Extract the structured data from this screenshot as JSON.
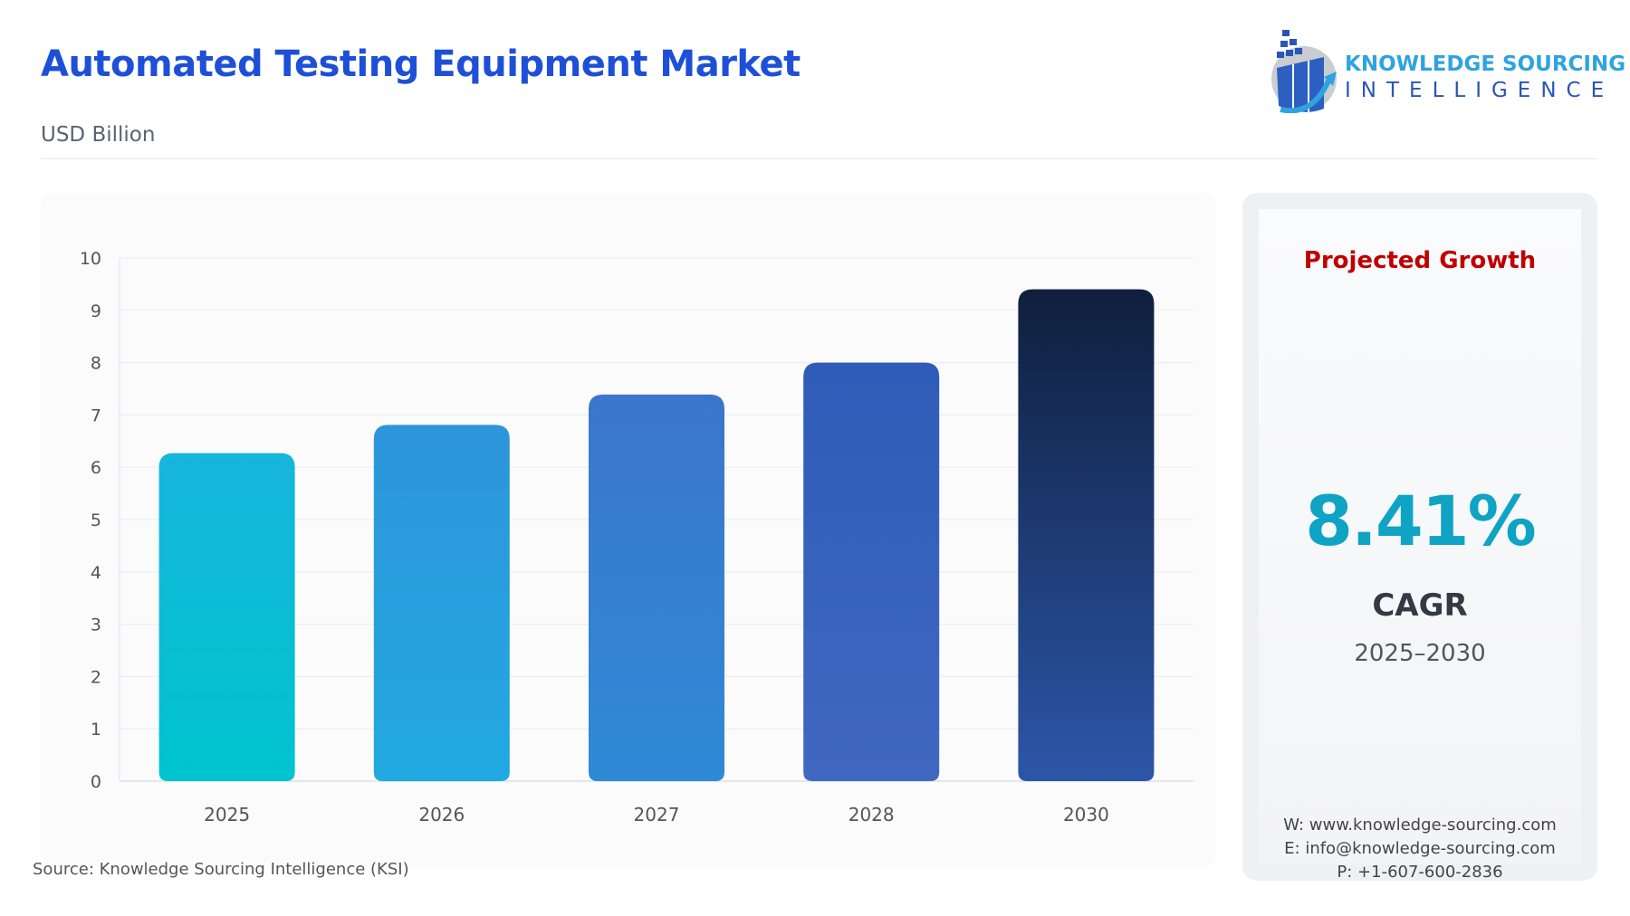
{
  "header": {
    "title": "Automated Testing Equipment Market",
    "subtitle": "USD Billion"
  },
  "logo": {
    "line1": "KNOWLEDGE SOURCING",
    "line2": "INTELLIGENCE"
  },
  "chart_data": {
    "type": "bar",
    "categories": [
      "2025",
      "2026",
      "2027",
      "2028",
      "2030"
    ],
    "values": [
      6.27,
      6.81,
      7.39,
      8.0,
      9.4
    ],
    "ylim": [
      0,
      10
    ],
    "yticks": [
      0,
      1,
      2,
      3,
      4,
      5,
      6,
      7,
      8,
      9,
      10
    ],
    "grid": true,
    "colors": [
      [
        "#17b6dc",
        "#00c4cf"
      ],
      [
        "#2e95db",
        "#22a9e0"
      ],
      [
        "#3b76cc",
        "#2f8ad6"
      ],
      [
        "#2e5cb8",
        "#4068c0"
      ],
      [
        "#0f1f3d",
        "#2c56a8"
      ]
    ]
  },
  "source": "Source: Knowledge Sourcing Intelligence (KSI)",
  "side": {
    "heading": "Projected Growth",
    "cagr_value": "8.41%",
    "cagr_label": "CAGR",
    "period": "2025–2030",
    "web": "W: www.knowledge-sourcing.com",
    "email": "E: info@knowledge-sourcing.com",
    "phone": "P: +1-607-600-2836"
  }
}
